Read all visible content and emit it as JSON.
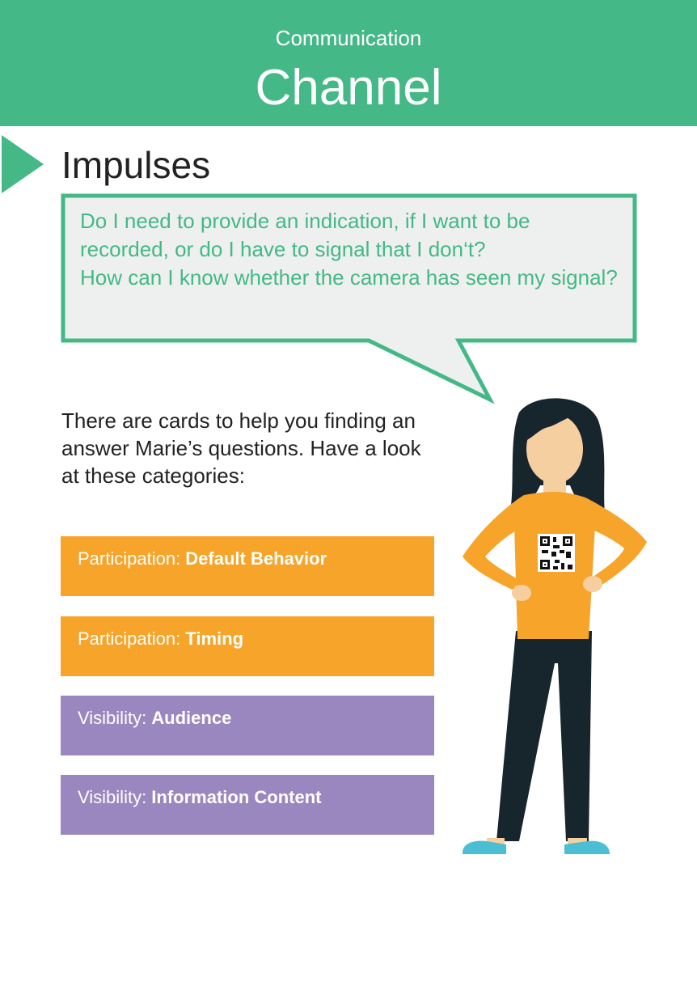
{
  "header": {
    "subtitle": "Communication",
    "title": "Channel"
  },
  "section": {
    "title": "Impulses"
  },
  "bubble": {
    "line1": "Do I need to provide an indication, if I want to be recorded, or do I have to signal that I don‘t?",
    "line2": "How can I know whether the camera has seen my signal?"
  },
  "intro": "There are cards to help you finding an answer Marie’s questions. Have a look at these categories:",
  "cards": [
    {
      "category": "Participation: ",
      "topic": "Default Behavior",
      "color": "#f7a42b"
    },
    {
      "category": "Participation: ",
      "topic": "Timing",
      "color": "#f7a42b"
    },
    {
      "category": "Visibility: ",
      "topic": "Audience",
      "color": "#9b87c0"
    },
    {
      "category": "Visibility: ",
      "topic": "Information Content",
      "color": "#9b87c0"
    }
  ],
  "colors": {
    "accent_green": "#44b886",
    "bubble_fill": "#eef0ef",
    "orange": "#f7a42b",
    "purple": "#9b87c0"
  },
  "illustration": {
    "icon": "woman-with-qr-code-icon"
  }
}
